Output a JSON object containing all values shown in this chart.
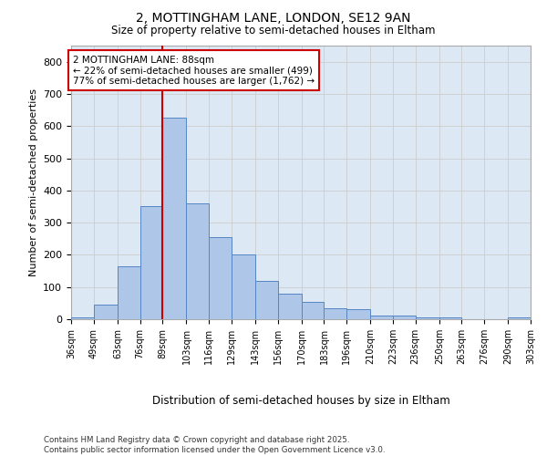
{
  "title_line1": "2, MOTTINGHAM LANE, LONDON, SE12 9AN",
  "title_line2": "Size of property relative to semi-detached houses in Eltham",
  "xlabel": "Distribution of semi-detached houses by size in Eltham",
  "ylabel": "Number of semi-detached properties",
  "bins": [
    36,
    49,
    63,
    76,
    89,
    103,
    116,
    129,
    143,
    156,
    170,
    183,
    196,
    210,
    223,
    236,
    250,
    263,
    276,
    290,
    303
  ],
  "counts": [
    5,
    45,
    165,
    350,
    625,
    360,
    255,
    200,
    120,
    80,
    55,
    35,
    30,
    10,
    10,
    5,
    5,
    0,
    0,
    5
  ],
  "bar_color": "#aec6e8",
  "bar_edge_color": "#5585c5",
  "grid_color": "#cccccc",
  "bg_color": "#dde8f5",
  "marker_value": 89,
  "marker_color": "#cc0000",
  "annotation_title": "2 MOTTINGHAM LANE: 88sqm",
  "annotation_line1": "← 22% of semi-detached houses are smaller (499)",
  "annotation_line2": "77% of semi-detached houses are larger (1,762) →",
  "annotation_box_color": "#cc0000",
  "ylim": [
    0,
    850
  ],
  "yticks": [
    0,
    100,
    200,
    300,
    400,
    500,
    600,
    700,
    800
  ],
  "footer_line1": "Contains HM Land Registry data © Crown copyright and database right 2025.",
  "footer_line2": "Contains public sector information licensed under the Open Government Licence v3.0."
}
